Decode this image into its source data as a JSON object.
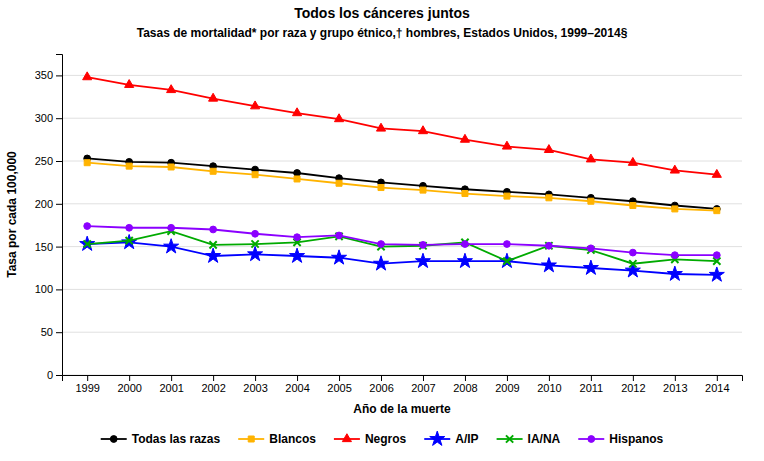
{
  "chart_data": {
    "type": "line",
    "title": "Todos los cánceres juntos",
    "subtitle": "Tasas de mortalidad* por raza y grupo étnico,†  hombres, Estados Unidos, 1999–2014§",
    "xlabel": "Año de la muerte",
    "ylabel": "Tasa por cada 100,000",
    "x": [
      1999,
      2000,
      2001,
      2002,
      2003,
      2004,
      2005,
      2006,
      2007,
      2008,
      2009,
      2010,
      2011,
      2012,
      2013,
      2014
    ],
    "xlim": [
      1998.4,
      2014.6
    ],
    "xticks": [
      1999,
      2000,
      2001,
      2002,
      2003,
      2004,
      2005,
      2006,
      2007,
      2008,
      2009,
      2010,
      2011,
      2012,
      2013,
      2014
    ],
    "ylim": [
      0,
      375
    ],
    "yticks": [
      0,
      50,
      100,
      150,
      200,
      250,
      300,
      350
    ],
    "grid": true,
    "legend": "bottom",
    "series": [
      {
        "name": "Todas las razas",
        "color": "#000000",
        "marker": "circle",
        "values": [
          253,
          249,
          248,
          244,
          240,
          236,
          230,
          225,
          221,
          217,
          214,
          211,
          207,
          203,
          198,
          194
        ]
      },
      {
        "name": "Blancos",
        "color": "#FFB300",
        "marker": "square",
        "values": [
          248,
          244,
          243,
          238,
          234,
          229,
          224,
          219,
          216,
          212,
          209,
          207,
          203,
          198,
          194,
          192
        ]
      },
      {
        "name": "Negros",
        "color": "#FF0000",
        "marker": "triangle",
        "values": [
          348,
          339,
          333,
          323,
          314,
          306,
          299,
          288,
          285,
          275,
          267,
          263,
          252,
          248,
          239,
          234
        ]
      },
      {
        "name": "A/IP",
        "color": "#0000FF",
        "marker": "star",
        "values": [
          153,
          155,
          150,
          139,
          141,
          139,
          137,
          130,
          133,
          133,
          133,
          128,
          125,
          122,
          118,
          117
        ]
      },
      {
        "name": "IA/NA",
        "color": "#00AA00",
        "marker": "x",
        "values": [
          153,
          157,
          168,
          152,
          153,
          155,
          162,
          150,
          151,
          155,
          133,
          151,
          146,
          130,
          135,
          133
        ]
      },
      {
        "name": "Hispanos",
        "color": "#8B00FF",
        "marker": "circle",
        "values": [
          174,
          172,
          172,
          170,
          165,
          161,
          163,
          153,
          152,
          153,
          153,
          151,
          148,
          143,
          140,
          140
        ]
      }
    ]
  }
}
